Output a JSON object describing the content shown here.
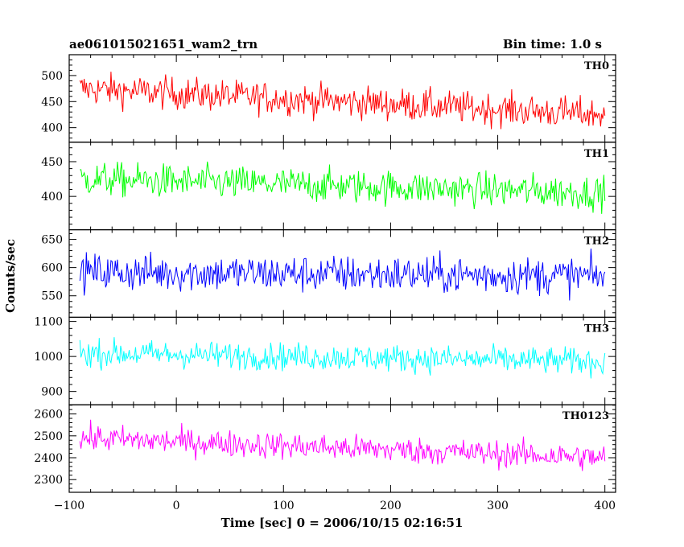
{
  "header": {
    "title": "ae061015021651_wam2_trn",
    "bin_time": "Bin time: 1.0 s"
  },
  "chart_data": {
    "type": "line",
    "xlabel": "Time [sec] 0 = 2006/10/15 02:16:51",
    "ylabel": "Counts/sec",
    "xlim": [
      -100,
      410
    ],
    "x_step": 1.0,
    "x_start": -90,
    "x_end": 400,
    "x_ticks": [
      -100,
      0,
      100,
      200,
      300,
      400
    ],
    "x_tick_labels": [
      "−100",
      "0",
      "100",
      "200",
      "300",
      "400"
    ],
    "panels": [
      {
        "name": "TH0",
        "color": "#ff0000",
        "ylim": [
          372,
          540
        ],
        "y_ticks": [
          400,
          450,
          500
        ],
        "mean_start": 475,
        "mean_end": 425,
        "noise": 28
      },
      {
        "name": "TH1",
        "color": "#00ff00",
        "ylim": [
          352,
          478
        ],
        "y_ticks": [
          400,
          450
        ],
        "mean_start": 425,
        "mean_end": 405,
        "noise": 22
      },
      {
        "name": "TH2",
        "color": "#0000ff",
        "ylim": [
          512,
          667
        ],
        "y_ticks": [
          550,
          600,
          650
        ],
        "mean_start": 592,
        "mean_end": 585,
        "noise": 30
      },
      {
        "name": "TH3",
        "color": "#00ffff",
        "ylim": [
          862,
          1112
        ],
        "y_ticks": [
          900,
          1000,
          1100
        ],
        "mean_start": 1010,
        "mean_end": 985,
        "noise": 35
      },
      {
        "name": "TH0123",
        "color": "#ff00ff",
        "ylim": [
          2242,
          2642
        ],
        "y_ticks": [
          2300,
          2400,
          2500,
          2600
        ],
        "mean_start": 2490,
        "mean_end": 2400,
        "noise": 55
      }
    ]
  }
}
